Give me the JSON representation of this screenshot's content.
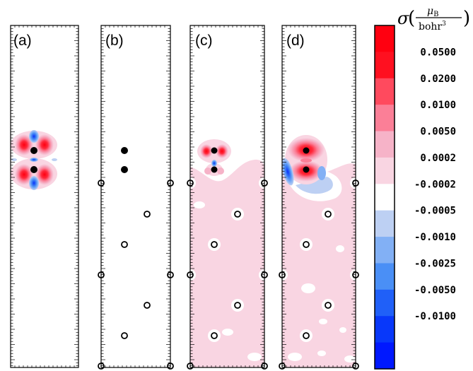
{
  "panels": [
    {
      "label": "(a)"
    },
    {
      "label": "(b)"
    },
    {
      "label": "(c)"
    },
    {
      "label": "(d)"
    }
  ],
  "colorbar": {
    "title_symbol": "σ",
    "unit_numerator": "μB",
    "unit_numerator_base": "μ",
    "unit_numerator_sub": "B",
    "unit_denominator": "bohr³",
    "unit_denominator_base": "bohr",
    "unit_denominator_sup": "3",
    "levels": [
      {
        "label": "0.0500",
        "color": "#ff1020"
      },
      {
        "label": "0.0200",
        "color": "#ff4a5e"
      },
      {
        "label": "0.0100",
        "color": "#fb7f97"
      },
      {
        "label": "0.0050",
        "color": "#f6b3c8"
      },
      {
        "label": "0.0002",
        "color": "#f9d5e2"
      },
      {
        "label": "-0.0002",
        "color": "#ffffff"
      },
      {
        "label": "-0.0005",
        "color": "#bdd0f3"
      },
      {
        "label": "-0.0010",
        "color": "#82b0f5"
      },
      {
        "label": "-0.0025",
        "color": "#4a8ff6"
      },
      {
        "label": "-0.0050",
        "color": "#2060f8"
      },
      {
        "label": "-0.0100",
        "color": "#0838fa"
      },
      {
        "label": "",
        "color": "#0018ff"
      }
    ],
    "top_color": "#ff0010"
  }
}
